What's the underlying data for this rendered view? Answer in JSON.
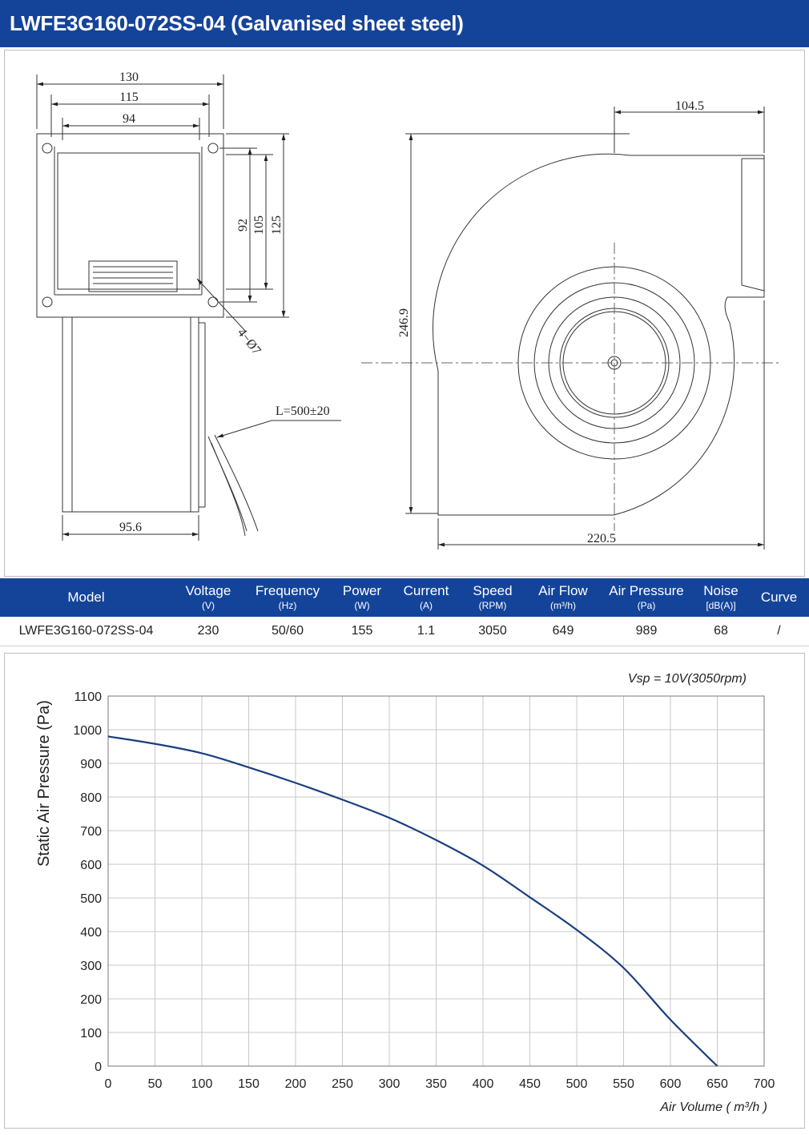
{
  "header": {
    "title": "LWFE3G160-072SS-04 (Galvanised sheet steel)"
  },
  "drawing": {
    "dims": {
      "d130": "130",
      "d115": "115",
      "d94": "94",
      "d92": "92",
      "d105": "105",
      "d125": "125",
      "holes": "4−Ø7",
      "cable": "L=500±20",
      "d95_6": "95.6",
      "d104_5": "104.5",
      "d246_9": "246.9",
      "d220_5": "220.5"
    }
  },
  "spec_table": {
    "headers": [
      {
        "label": "Model",
        "unit": ""
      },
      {
        "label": "Voltage",
        "unit": "(V)"
      },
      {
        "label": "Frequency",
        "unit": "(Hz)"
      },
      {
        "label": "Power",
        "unit": "(W)"
      },
      {
        "label": "Current",
        "unit": "(A)"
      },
      {
        "label": "Speed",
        "unit": "(RPM)"
      },
      {
        "label": "Air Flow",
        "unit": "(m³/h)"
      },
      {
        "label": "Air Pressure",
        "unit": "(Pa)"
      },
      {
        "label": "Noise",
        "unit": "[dB(A)]"
      },
      {
        "label": "Curve",
        "unit": ""
      }
    ],
    "row": [
      "LWFE3G160-072SS-04",
      "230",
      "50/60",
      "155",
      "1.1",
      "3050",
      "649",
      "989",
      "68",
      "/"
    ]
  },
  "chart_data": {
    "type": "line",
    "title": "",
    "annotation": "Vsp = 10V(3050rpm)",
    "xlabel": "Air Volume ( m³/h )",
    "ylabel": "Static Air Pressure  (Pa)",
    "xlim": [
      0,
      700
    ],
    "ylim": [
      0,
      1100
    ],
    "xticks": [
      0,
      50,
      100,
      150,
      200,
      250,
      300,
      350,
      400,
      450,
      500,
      550,
      600,
      650,
      700
    ],
    "yticks": [
      0,
      100,
      200,
      300,
      400,
      500,
      600,
      700,
      800,
      900,
      1000,
      1100
    ],
    "grid": true,
    "line_color": "#1a3f7f",
    "series": [
      {
        "x": [
          0,
          50,
          100,
          150,
          200,
          250,
          300,
          350,
          400,
          450,
          500,
          550,
          600,
          650
        ],
        "y": [
          980,
          958,
          930,
          888,
          842,
          792,
          738,
          672,
          596,
          502,
          405,
          292,
          138,
          0
        ]
      }
    ]
  }
}
